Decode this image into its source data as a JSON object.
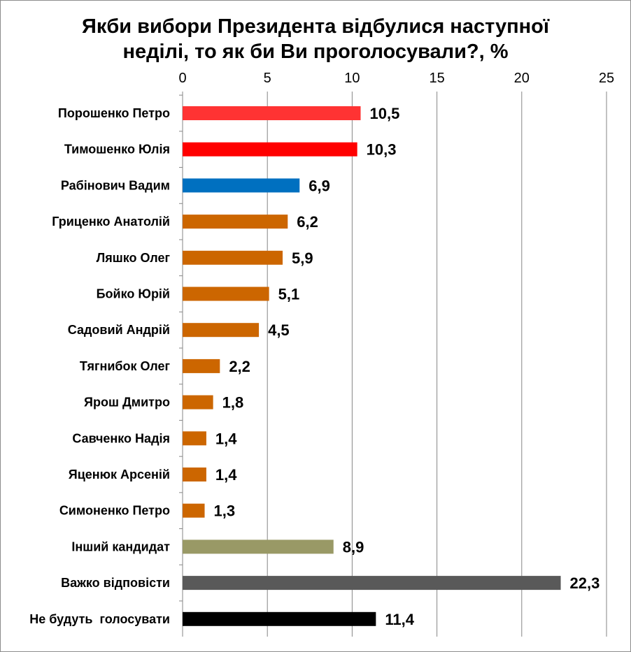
{
  "chart_data": {
    "type": "bar",
    "orientation": "horizontal",
    "title": "Якби вибори Президента відбулися наступної неділі, то як би Ви проголосували?, %",
    "title_lines": [
      "Якби вибори Президента відбулися наступної",
      "неділі, то як би Ви проголосували?, %"
    ],
    "xlabel": "",
    "ylabel": "",
    "xlim": [
      0,
      25
    ],
    "x_ticks": [
      0,
      5,
      10,
      15,
      20,
      25
    ],
    "x_tick_labels": [
      "0",
      "5",
      "10",
      "15",
      "20",
      "25"
    ],
    "axis_position": "top",
    "grid": "vertical",
    "legend": "none",
    "categories": [
      "Порошенко Петро",
      "Тимошенко Юлія",
      "Рабінович Вадим",
      "Гриценко Анатолій",
      "Ляшко Олег",
      "Бойко Юрій",
      "Садовий Андрій",
      "Тягнибок Олег",
      "Ярош Дмитро",
      "Савченко Надія",
      "Яценюк Арсеній",
      "Симоненко Петро",
      "Інший кандидат",
      "Важко відповісти",
      "Не будуть  голосувати"
    ],
    "values": [
      10.5,
      10.3,
      6.9,
      6.2,
      5.9,
      5.1,
      4.5,
      2.2,
      1.8,
      1.4,
      1.4,
      1.3,
      8.9,
      22.3,
      11.4
    ],
    "value_labels": [
      "10,5",
      "10,3",
      "6,9",
      "6,2",
      "5,9",
      "5,1",
      "4,5",
      "2,2",
      "1,8",
      "1,4",
      "1,4",
      "1,3",
      "8,9",
      "22,3",
      "11,4"
    ],
    "bar_colors": [
      "#ff3333",
      "#ff0000",
      "#0070c0",
      "#cc6600",
      "#cc6600",
      "#cc6600",
      "#cc6600",
      "#cc6600",
      "#cc6600",
      "#cc6600",
      "#cc6600",
      "#cc6600",
      "#999966",
      "#595959",
      "#000000"
    ],
    "gridline_color": "#868686"
  }
}
